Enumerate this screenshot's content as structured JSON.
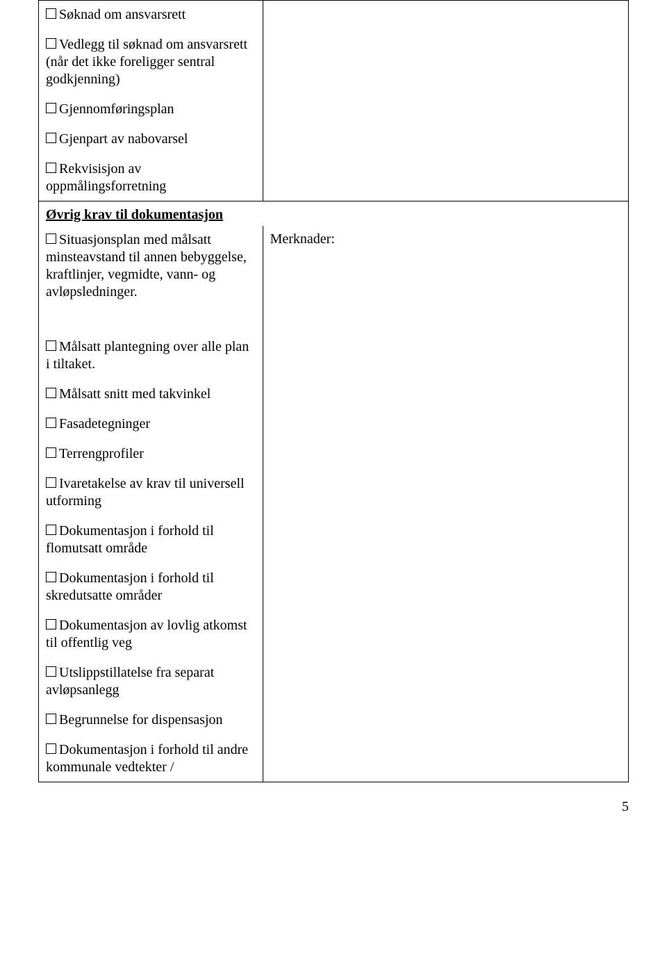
{
  "section1": {
    "items": [
      {
        "label": "Søknad om ansvarsrett"
      },
      {
        "label": "Vedlegg til søknad om ansvarsrett (når det ikke foreligger sentral godkjenning)"
      },
      {
        "label": "Gjennomføringsplan"
      },
      {
        "label": "Gjenpart av nabovarsel"
      },
      {
        "label": "Rekvisisjon av oppmålingsforretning"
      }
    ]
  },
  "section2": {
    "header": "Øvrig krav til dokumentasjon",
    "merknader_label": "Merknader:",
    "group1": [
      {
        "label": "Situasjonsplan med målsatt minsteavstand til annen bebyggelse, kraftlinjer, vegmidte, vann- og avløpsledninger."
      }
    ],
    "group2": [
      {
        "label": "Målsatt plantegning over alle plan i tiltaket."
      },
      {
        "label": "Målsatt snitt med takvinkel"
      },
      {
        "label": "Fasadetegninger"
      },
      {
        "label": "Terrengprofiler"
      },
      {
        "label": "Ivaretakelse av krav til universell utforming"
      },
      {
        "label": "Dokumentasjon i forhold til flomutsatt område"
      },
      {
        "label": "Dokumentasjon i forhold til skredutsatte områder"
      },
      {
        "label": "Dokumentasjon av lovlig atkomst til offentlig veg"
      },
      {
        "label": "Utslippstillatelse fra separat avløpsanlegg"
      },
      {
        "label": "Begrunnelse for dispensasjon"
      },
      {
        "label": "Dokumentasjon i forhold til andre kommunale vedtekter /"
      }
    ]
  },
  "page_number": "5"
}
